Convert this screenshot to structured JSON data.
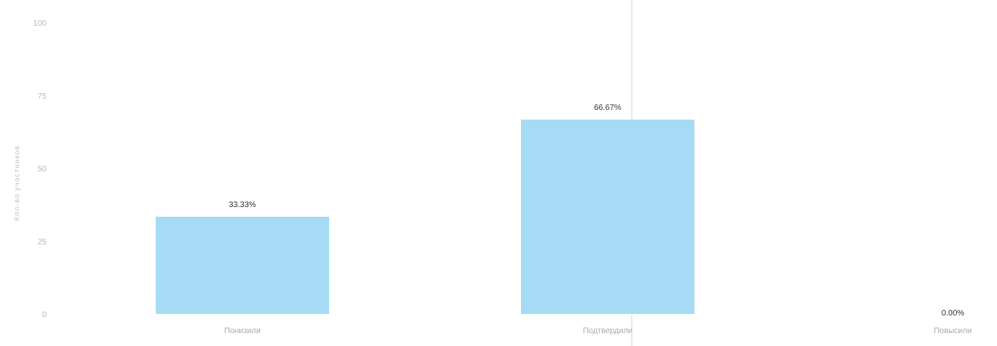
{
  "chart_data": {
    "type": "bar",
    "title": "",
    "xlabel": "",
    "ylabel": "Кол-во участников",
    "categories": [
      "Понизили",
      "Подтвердили",
      "Повысили"
    ],
    "values": [
      33.33,
      66.67,
      0.0
    ],
    "data_labels": [
      "33.33%",
      "66.67%",
      "0.00%"
    ],
    "yticks": [
      "0",
      "25",
      "50",
      "75",
      "100"
    ],
    "ylim": [
      0,
      100
    ],
    "bar_color": "#a6dbf5",
    "grid": false,
    "legend": "none"
  }
}
